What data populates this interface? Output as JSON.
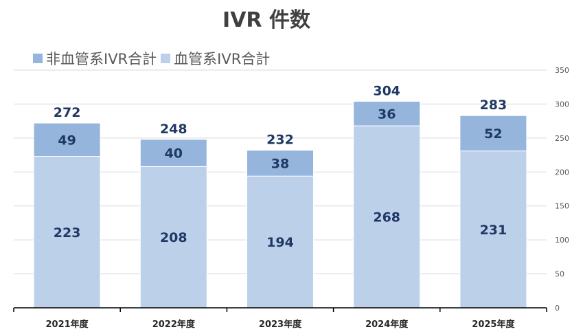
{
  "chart_data": {
    "type": "bar",
    "stacked": true,
    "title": "IVR 件数",
    "categories": [
      "2021年度",
      "2022年度",
      "2023年度",
      "2024年度",
      "2025年度"
    ],
    "series": [
      {
        "name": "血管系IVR合計",
        "values": [
          223,
          208,
          194,
          268,
          231
        ],
        "color": "#bdd0ea"
      },
      {
        "name": "非血管系IVR合計",
        "values": [
          49,
          40,
          38,
          36,
          52
        ],
        "color": "#95b5dc"
      }
    ],
    "totals": [
      272,
      248,
      232,
      304,
      283
    ],
    "legend_order": [
      1,
      0
    ],
    "ylim": [
      0,
      350
    ],
    "yticks": [
      0,
      50,
      100,
      150,
      200,
      250,
      300,
      350
    ],
    "y_axis_side": "right",
    "legend_position": "top-left",
    "grid": true,
    "colors": {
      "label_dark": "#1f3864",
      "axis_text": "#595959",
      "grid": "#d9d9d9",
      "axis_line": "#000000"
    }
  }
}
